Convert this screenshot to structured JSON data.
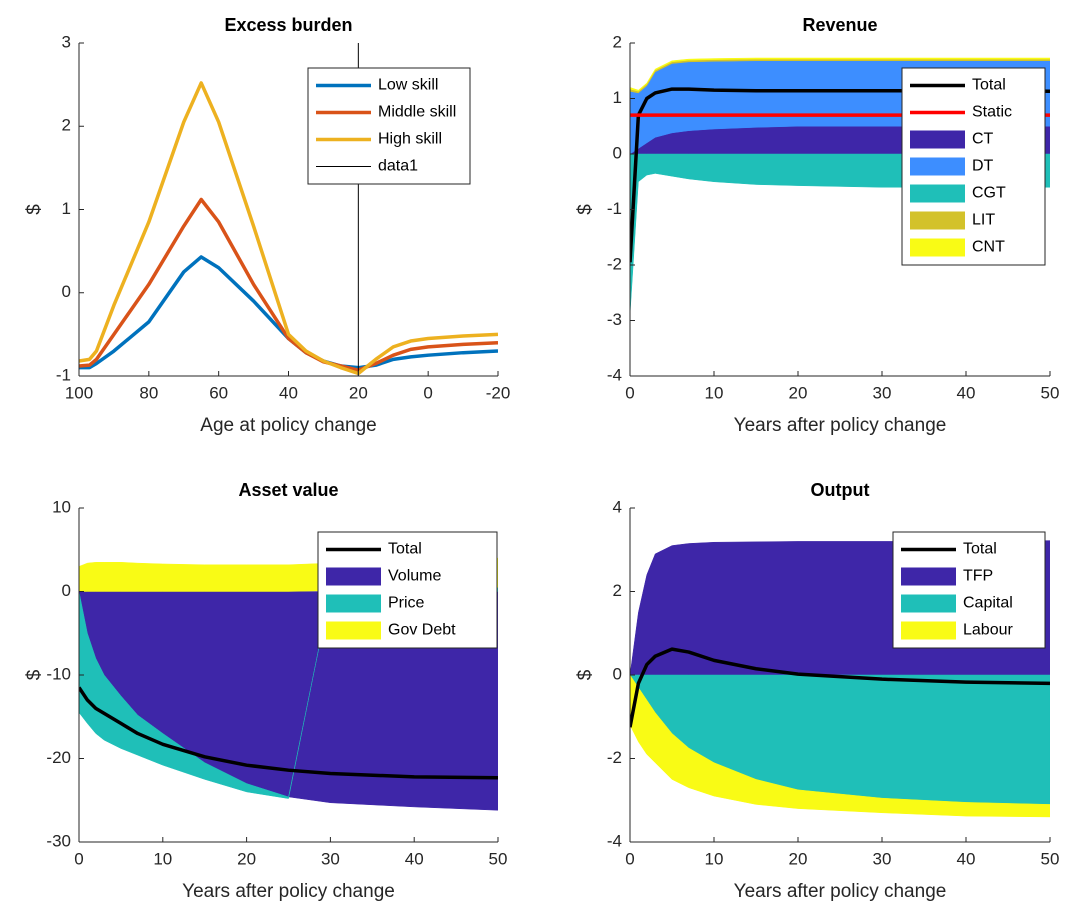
{
  "chart_data": [
    {
      "type": "line",
      "title": "Excess burden",
      "xlabel": "Age at policy change",
      "ylabel": "$",
      "x": [
        100,
        97,
        95,
        90,
        80,
        70,
        65,
        60,
        50,
        40,
        35,
        30,
        25,
        20,
        15,
        10,
        5,
        0,
        -10,
        -20
      ],
      "xlim": [
        100,
        -20
      ],
      "xticks": [
        100,
        80,
        60,
        40,
        20,
        0,
        -20
      ],
      "ylim": [
        -1,
        3
      ],
      "yticks": [
        -1,
        0,
        1,
        2,
        3
      ],
      "legend": "northeast",
      "series": [
        {
          "name": "Low skill",
          "color": "#0072BD",
          "mark": "line",
          "values": [
            -0.9,
            -0.9,
            -0.85,
            -0.7,
            -0.35,
            0.25,
            0.43,
            0.3,
            -0.1,
            -0.55,
            -0.72,
            -0.82,
            -0.88,
            -0.9,
            -0.87,
            -0.8,
            -0.77,
            -0.75,
            -0.72,
            -0.7
          ]
        },
        {
          "name": "Middle skill",
          "color": "#D95319",
          "mark": "line",
          "values": [
            -0.88,
            -0.87,
            -0.8,
            -0.5,
            0.1,
            0.8,
            1.12,
            0.85,
            0.1,
            -0.55,
            -0.72,
            -0.83,
            -0.88,
            -0.93,
            -0.85,
            -0.75,
            -0.68,
            -0.65,
            -0.62,
            -0.6
          ]
        },
        {
          "name": "High skill",
          "color": "#EDB120",
          "mark": "line",
          "values": [
            -0.82,
            -0.8,
            -0.7,
            -0.15,
            0.85,
            2.05,
            2.52,
            2.05,
            0.8,
            -0.5,
            -0.7,
            -0.82,
            -0.9,
            -0.97,
            -0.8,
            -0.65,
            -0.58,
            -0.55,
            -0.52,
            -0.5
          ]
        },
        {
          "name": "data1",
          "color": "#000000",
          "mark": "thin-line",
          "x": [
            20,
            20
          ],
          "values": [
            -1,
            3
          ]
        }
      ]
    },
    {
      "type": "area",
      "title": "Revenue",
      "xlabel": "Years after policy change",
      "ylabel": "$",
      "x": [
        0,
        1,
        2,
        3,
        5,
        7,
        10,
        15,
        20,
        30,
        40,
        50
      ],
      "xlim": [
        0,
        50
      ],
      "xticks": [
        0,
        10,
        20,
        30,
        40,
        50
      ],
      "ylim": [
        -4,
        2
      ],
      "yticks": [
        -4,
        -3,
        -2,
        -1,
        0,
        1,
        2
      ],
      "legend": "northeast",
      "series": [
        {
          "name": "Total",
          "color": "#000000",
          "mark": "line",
          "values": [
            -1.95,
            0.7,
            1.0,
            1.1,
            1.17,
            1.17,
            1.15,
            1.14,
            1.14,
            1.14,
            1.14,
            1.13
          ]
        },
        {
          "name": "Static",
          "color": "#FF0000",
          "mark": "line",
          "values": [
            0.7,
            0.7,
            0.7,
            0.7,
            0.7,
            0.7,
            0.7,
            0.7,
            0.7,
            0.7,
            0.7,
            0.7
          ]
        },
        {
          "name": "CT",
          "color": "#3E26A8",
          "mark": "area",
          "values": [
            0,
            0.1,
            0.2,
            0.3,
            0.38,
            0.42,
            0.45,
            0.48,
            0.5,
            0.5,
            0.5,
            0.5
          ]
        },
        {
          "name": "DT",
          "color": "#3D8EFF",
          "mark": "area",
          "values": [
            1.13,
            1.0,
            1.03,
            1.18,
            1.25,
            1.24,
            1.22,
            1.2,
            1.18,
            1.18,
            1.18,
            1.18
          ]
        },
        {
          "name": "CGT",
          "color": "#1FBFB8",
          "mark": "area",
          "values": [
            -2.9,
            -0.5,
            -0.38,
            -0.35,
            -0.4,
            -0.45,
            -0.5,
            -0.55,
            -0.57,
            -0.6,
            -0.6,
            -0.6
          ]
        },
        {
          "name": "LIT",
          "color": "#D3C22A",
          "mark": "area",
          "values": [
            0.04,
            0.03,
            0.03,
            0.03,
            0.03,
            0.03,
            0.03,
            0.03,
            0.03,
            0.03,
            0.03,
            0.03
          ]
        },
        {
          "name": "CNT",
          "color": "#F9FB15",
          "mark": "area",
          "values": [
            0.03,
            0.02,
            0.02,
            0.02,
            0.02,
            0.02,
            0.02,
            0.02,
            0.02,
            0.02,
            0.02,
            0.02
          ]
        }
      ]
    },
    {
      "type": "area",
      "title": "Asset value",
      "xlabel": "Years after policy change",
      "ylabel": "$",
      "x": [
        0,
        1,
        2,
        3,
        5,
        7,
        10,
        15,
        20,
        25,
        30,
        40,
        50
      ],
      "xlim": [
        0,
        50
      ],
      "xticks": [
        0,
        10,
        20,
        30,
        40,
        50
      ],
      "ylim": [
        -30,
        10
      ],
      "yticks": [
        -30,
        -20,
        -10,
        0,
        10
      ],
      "legend": "northeast",
      "series": [
        {
          "name": "Total",
          "color": "#000000",
          "mark": "line",
          "values": [
            -11.5,
            -13,
            -14,
            -14.6,
            -15.8,
            -17,
            -18.3,
            -19.8,
            -20.8,
            -21.4,
            -21.8,
            -22.2,
            -22.3
          ]
        },
        {
          "name": "Volume",
          "color": "#3E26A8",
          "mark": "area",
          "values": [
            0,
            -5,
            -8,
            -10,
            -12.5,
            -14.8,
            -17,
            -20.5,
            -23,
            -24.6,
            -25.3,
            -25.8,
            -26.2
          ]
        },
        {
          "name": "Price",
          "color": "#1FBFB8",
          "mark": "area",
          "values": [
            -14.5,
            -10.8,
            -9,
            -7.8,
            -6.3,
            -4.8,
            -3.8,
            -2,
            -1,
            -0.2,
            0.1,
            0.3,
            0.5
          ]
        },
        {
          "name": "Gov Debt",
          "color": "#F9FB15",
          "mark": "area",
          "values": [
            3,
            3.4,
            3.5,
            3.5,
            3.5,
            3.4,
            3.3,
            3.2,
            3.2,
            3.2,
            3.3,
            3.5,
            3.5
          ]
        }
      ]
    },
    {
      "type": "area",
      "title": "Output",
      "xlabel": "Years after policy change",
      "ylabel": "$",
      "x": [
        0,
        1,
        2,
        3,
        5,
        7,
        10,
        15,
        20,
        30,
        40,
        50
      ],
      "xlim": [
        0,
        50
      ],
      "xticks": [
        0,
        10,
        20,
        30,
        40,
        50
      ],
      "ylim": [
        -4,
        4
      ],
      "yticks": [
        -4,
        -2,
        0,
        2,
        4
      ],
      "legend": "northeast",
      "series": [
        {
          "name": "Total",
          "color": "#000000",
          "mark": "line",
          "values": [
            -1.25,
            -0.2,
            0.25,
            0.45,
            0.62,
            0.55,
            0.35,
            0.15,
            0.02,
            -0.1,
            -0.17,
            -0.2
          ]
        },
        {
          "name": "TFP",
          "color": "#3E26A8",
          "mark": "area",
          "values": [
            0,
            1.5,
            2.4,
            2.9,
            3.1,
            3.15,
            3.18,
            3.19,
            3.2,
            3.2,
            3.2,
            3.22
          ]
        },
        {
          "name": "Capital",
          "color": "#1FBFB8",
          "mark": "area",
          "values": [
            0,
            -0.3,
            -0.6,
            -0.9,
            -1.4,
            -1.75,
            -2.1,
            -2.5,
            -2.75,
            -2.95,
            -3.05,
            -3.1
          ]
        },
        {
          "name": "Labour",
          "color": "#F9FB15",
          "mark": "area",
          "values": [
            -1.2,
            -1.3,
            -1.3,
            -1.2,
            -1.1,
            -0.95,
            -0.8,
            -0.6,
            -0.45,
            -0.35,
            -0.33,
            -0.3
          ]
        }
      ]
    }
  ]
}
